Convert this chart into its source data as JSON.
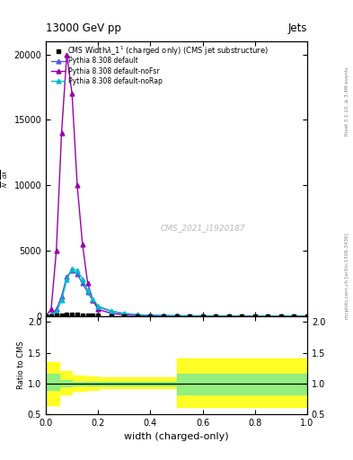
{
  "title_top": "13000 GeV pp",
  "title_right": "Jets",
  "xlabel": "width (charged-only)",
  "ylabel_ratio": "Ratio to CMS",
  "cms_label": "CMS",
  "watermark": "CMS_2021_I1920187",
  "right_label": "mcplots.cern.ch [arXiv:1306.3436]",
  "rivet_label": "Rivet 3.1.10, ≥ 3.4M events",
  "legend_title": "Widthλ_1¹ (charged only) (CMS jet substructure)",
  "x_data": [
    0.0,
    0.02,
    0.04,
    0.06,
    0.08,
    0.1,
    0.12,
    0.14,
    0.16,
    0.18,
    0.2,
    0.25,
    0.3,
    0.35,
    0.4,
    0.45,
    0.5,
    0.55,
    0.6,
    0.65,
    0.7,
    0.75,
    0.8,
    0.85,
    0.9,
    0.95,
    1.0
  ],
  "cms_y": [
    0,
    5,
    20,
    50,
    80,
    100,
    80,
    60,
    40,
    25,
    15,
    8,
    4,
    2,
    1,
    0.5,
    0.2,
    0.1,
    0.05,
    0.02,
    0.01,
    0.005,
    0.002,
    0.001,
    0,
    0,
    0
  ],
  "pythia_default_y": [
    0,
    100,
    500,
    1500,
    3000,
    3500,
    3200,
    2500,
    1800,
    1200,
    700,
    350,
    180,
    90,
    45,
    25,
    15,
    10,
    7,
    5,
    3,
    2,
    1,
    0.5,
    0.2,
    0.1,
    0
  ],
  "pythia_nofsr_y": [
    0,
    500,
    5000,
    14000,
    20000,
    17000,
    10000,
    5500,
    2500,
    1200,
    500,
    200,
    80,
    30,
    12,
    5,
    2,
    1,
    0.5,
    0.2,
    0.1,
    0.05,
    0.02,
    0.01,
    0,
    0,
    0
  ],
  "pythia_norap_y": [
    0,
    50,
    300,
    1200,
    2800,
    3600,
    3500,
    2800,
    2000,
    1300,
    750,
    380,
    190,
    95,
    50,
    28,
    16,
    10,
    7,
    4,
    3,
    2,
    1,
    0.5,
    0.2,
    0.1,
    0
  ],
  "color_default": "#5555dd",
  "color_nofsr": "#9900aa",
  "color_norap": "#00bbcc",
  "color_cms": "#000000",
  "ratio_x_edges": [
    0.0,
    0.05,
    0.1,
    0.15,
    0.2,
    0.25,
    0.3,
    0.35,
    0.4,
    0.45,
    0.5,
    0.55,
    1.0
  ],
  "ratio_green_low": [
    0.9,
    0.95,
    0.97,
    0.97,
    0.97,
    0.97,
    0.97,
    0.97,
    0.97,
    0.97,
    0.82,
    0.82,
    0.82
  ],
  "ratio_green_high": [
    1.15,
    1.05,
    1.03,
    1.03,
    1.03,
    1.03,
    1.03,
    1.03,
    1.03,
    1.03,
    1.15,
    1.15,
    1.15
  ],
  "ratio_yellow_low": [
    0.65,
    0.82,
    0.88,
    0.9,
    0.92,
    0.92,
    0.92,
    0.92,
    0.92,
    0.92,
    0.62,
    0.62,
    0.62
  ],
  "ratio_yellow_high": [
    1.35,
    1.2,
    1.13,
    1.12,
    1.1,
    1.1,
    1.1,
    1.1,
    1.1,
    1.1,
    1.4,
    1.4,
    1.4
  ],
  "ylim_main": [
    0,
    21000
  ],
  "ylim_ratio": [
    0.5,
    2.1
  ],
  "yticks_main": [
    0,
    5000,
    10000,
    15000,
    20000
  ],
  "yticks_ratio": [
    0.5,
    1.0,
    1.5,
    2.0
  ],
  "xlim": [
    0.0,
    1.0
  ]
}
